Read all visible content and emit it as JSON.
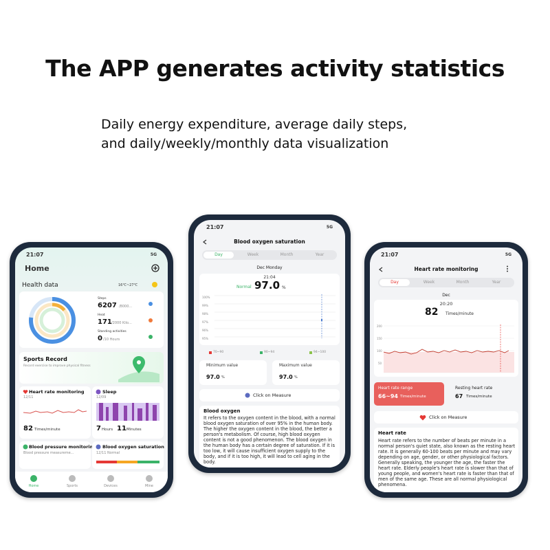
{
  "header": {
    "title": "The APP generates activity statistics",
    "subtitle_lines": [
      "Daily energy expenditure, average daily steps,",
      "and daily/weekly/monthly data visualization"
    ]
  },
  "home_screen": {
    "time": "21:07",
    "network": "5G",
    "title": "Home",
    "health_data": "Health data",
    "weather": "16℃~27℃",
    "steps_label": "Steps",
    "steps_value": "6207",
    "steps_goal": "/8000...",
    "heat_label": "Heat",
    "heat_value": "171",
    "heat_goal": "/2000 Kilo...",
    "standing_label": "Standing activities",
    "standing_value": "0",
    "standing_goal": "/10 Hours",
    "sports_title": "Sports Record",
    "sports_sub": "Record exercise to improve physical fitness",
    "hr_title": "Heart rate monitoring",
    "hr_date": "12/11",
    "hr_value": "82",
    "hr_unit": "Times/minute",
    "sleep_title": "Sleep",
    "sleep_date": "12/09",
    "sleep_hours": "7",
    "hours_unit": "Hours",
    "sleep_minutes": "11",
    "minutes_unit": "Minutes",
    "bp_title": "Blood pressure monitoring",
    "bp_sub": "Blood pressure measureme...",
    "bo_title": "Blood oxygen saturation",
    "bo_sub": "12/11 Normal",
    "tabs": [
      "Home",
      "Sports",
      "Devices",
      "Mine"
    ]
  },
  "oxygen_screen": {
    "time": "21:07",
    "network": "5G",
    "title": "Blood oxygen saturation",
    "tabs": [
      "Day",
      "Week",
      "Month",
      "Year"
    ],
    "date": "Dec Monday",
    "reading_time": "21:04",
    "status": "Normal",
    "value": "97.0",
    "unit": "%",
    "axis_labels": [
      "100%",
      "99%",
      "98%",
      "97%",
      "96%",
      "95%"
    ],
    "legend": [
      "70~90",
      "90~94",
      "94~100"
    ],
    "min_label": "Minimum value",
    "min_value": "97.0",
    "max_label": "Maximum value",
    "max_value": "97.0",
    "measure": "Click on Measure",
    "info_title": "Blood oxygen",
    "info_text": "It refers to the oxygen content in the blood, with a normal blood oxygen saturation of over 95% in the human body. The higher the oxygen content in the blood, the better a person's metabolism. Of course, high blood oxygen content is not a good phenomenon. The blood oxygen in the human body has a certain degree of saturation. If it is too low, it will cause insufficient oxygen supply to the body, and if it is too high, it will lead to cell aging in the body."
  },
  "heart_screen": {
    "time": "21:07",
    "network": "5G",
    "title": "Heart rate monitoring",
    "tabs": [
      "Day",
      "Week",
      "Month",
      "Year"
    ],
    "date": "Dec",
    "reading_time": "20:20",
    "value": "82",
    "unit": "Times/minute",
    "axis_labels": [
      "200",
      "150",
      "100",
      "50"
    ],
    "range_label": "Heart rate range",
    "range_value": "66~94",
    "resting_label": "Resting heart rate",
    "resting_value": "67",
    "measure": "Click on Measure",
    "info_title": "Heart rate",
    "info_text": "Heart rate refers to the number of beats per minute in a normal person's quiet state, also known as the resting heart rate. It is generally 60-100 beats per minute and may vary depending on age, gender, or other physiological factors. Generally speaking, the younger the age, the faster the heart rate. Elderly people's heart rate is slower than that of young people, and women's heart rate is faster than that of men of the same age. These are all normal physiological phenomena."
  }
}
